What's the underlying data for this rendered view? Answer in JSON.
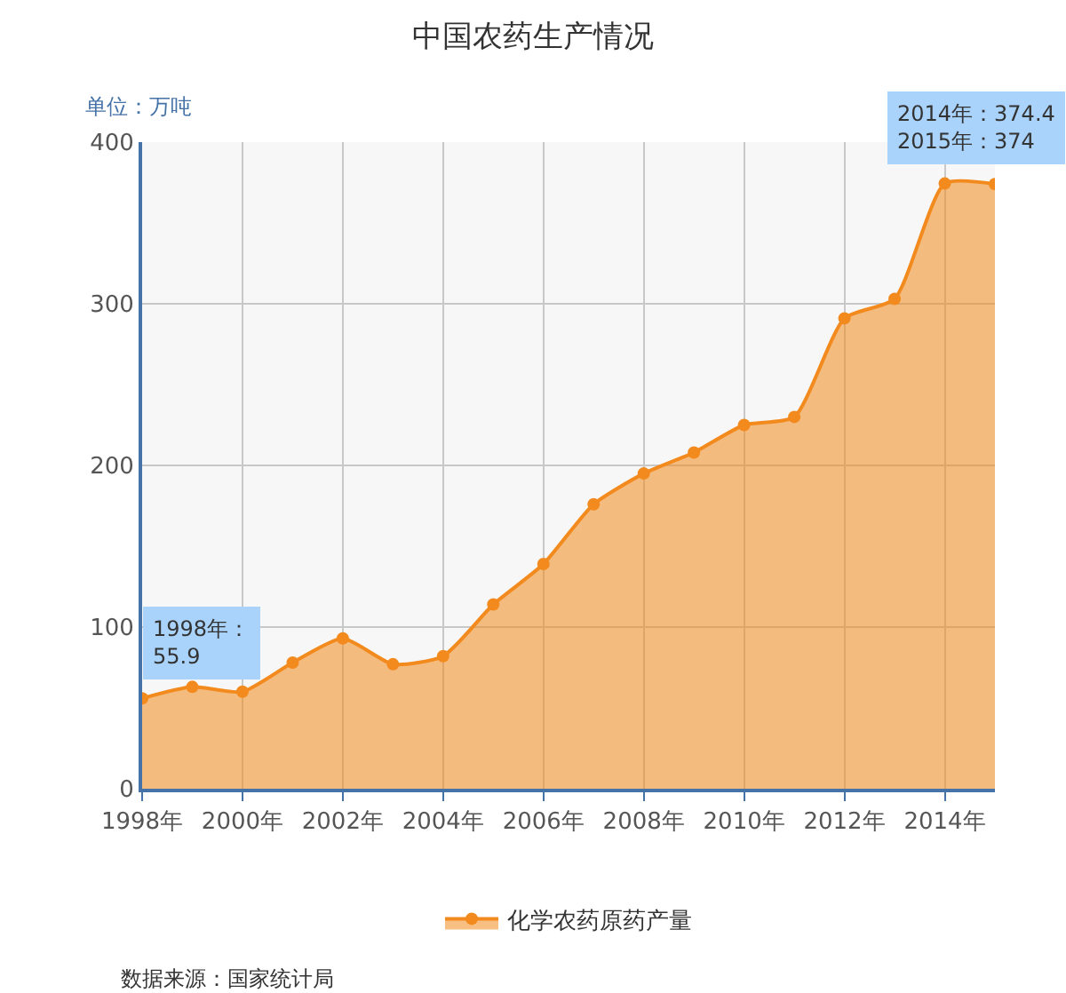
{
  "chart_data": {
    "type": "area",
    "title": "中国农药生产情况",
    "ylabel": "单位：万吨",
    "x": [
      1998,
      1999,
      2000,
      2001,
      2002,
      2003,
      2004,
      2005,
      2006,
      2007,
      2008,
      2009,
      2010,
      2011,
      2012,
      2013,
      2014,
      2015
    ],
    "series": [
      {
        "name": "化学农药原药产量",
        "color": "#f38a1d",
        "values": [
          55.9,
          63,
          60,
          78,
          93,
          77,
          82,
          114,
          139,
          176,
          195,
          208,
          225,
          230,
          291,
          303,
          374.4,
          374
        ]
      }
    ],
    "xlim": [
      1998,
      2015
    ],
    "xticks": [
      {
        "value": 1998,
        "label": "1998年"
      },
      {
        "value": 2000,
        "label": "2000年"
      },
      {
        "value": 2002,
        "label": "2002年"
      },
      {
        "value": 2004,
        "label": "2004年"
      },
      {
        "value": 2006,
        "label": "2006年"
      },
      {
        "value": 2008,
        "label": "2008年"
      },
      {
        "value": 2010,
        "label": "2010年"
      },
      {
        "value": 2012,
        "label": "2012年"
      },
      {
        "value": 2014,
        "label": "2014年"
      }
    ],
    "ylim": [
      0,
      400
    ],
    "yticks": [
      0,
      100,
      200,
      300,
      400
    ],
    "grid": true,
    "legend": "bottom",
    "marker": "circle",
    "line_style": "solid",
    "annotations": [
      {
        "text": "1998年：\n55.9",
        "x": 1998,
        "y": 55.9
      },
      {
        "text": "2014年：374.4\n2015年：374",
        "x": 2014,
        "y": 374.4
      },
      "数据来源：国家统计局"
    ]
  }
}
